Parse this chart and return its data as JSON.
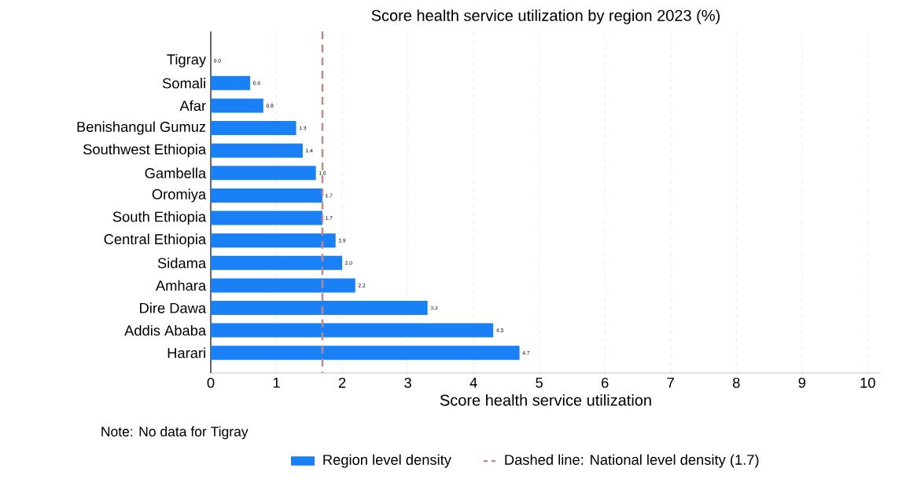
{
  "chart_data": {
    "type": "bar",
    "orientation": "horizontal",
    "title": "Score health service utilization by region 2023 (%)",
    "xlabel": "Score health service utilization",
    "categories": [
      "Tigray",
      "Somali",
      "Afar",
      "Benishangul Gumuz",
      "Southwest Ethiopia",
      "Gambella",
      "Oromiya",
      "South Ethiopia",
      "Central Ethiopia",
      "Sidama",
      "Amhara",
      "Dire Dawa",
      "Addis Ababa",
      "Harari"
    ],
    "series": [
      {
        "name": "Region level density",
        "color": "#1a80f6",
        "values": [
          0,
          0.6,
          0.8,
          1.3,
          1.4,
          1.6,
          1.7,
          1.7,
          1.9,
          2.0,
          2.2,
          3.3,
          4.3,
          4.7
        ]
      }
    ],
    "value_labels": [
      "0.0",
      "0.6",
      "0.8",
      "1.3",
      "1.4",
      "1.6",
      "1.7",
      "1.7",
      "1.9",
      "2.0",
      "2.2",
      "3.3",
      "4.3",
      "4.7"
    ],
    "xlim": [
      0,
      10.2
    ],
    "xticks": [
      0,
      1,
      2,
      3,
      4,
      5,
      6,
      7,
      8,
      9,
      10
    ],
    "grid": "x",
    "legend": "bottom",
    "ref_lines": [
      {
        "axis": "x",
        "value": 1.7,
        "label": "Dashed line: National level density (1.7)",
        "color": "#c08a8a",
        "line_style": "dashed"
      }
    ],
    "annotations": [
      "Note: No data for Tigray"
    ]
  }
}
